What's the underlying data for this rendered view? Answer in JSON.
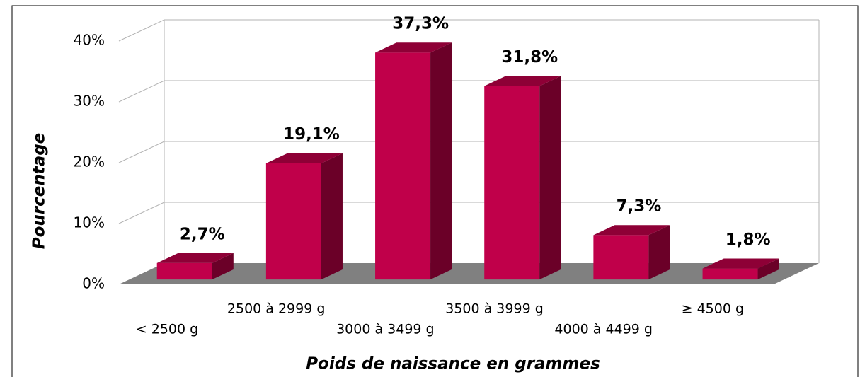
{
  "chart_data": {
    "type": "bar3d",
    "xlabel": "Poids de naissance en grammes",
    "ylabel": "Pourcentage",
    "categories": [
      "< 2500 g",
      "2500 à 2999 g",
      "3000 à 3499 g",
      "3500 à 3999 g",
      "4000 à 4499 g",
      "≥ 4500 g"
    ],
    "values": [
      2.7,
      19.1,
      37.3,
      31.8,
      7.3,
      1.8
    ],
    "value_labels": [
      "2,7%",
      "19,1%",
      "37,3%",
      "31,8%",
      "7,3%",
      "1,8%"
    ],
    "color": "#c0004a",
    "ylim": [
      0,
      40
    ],
    "yticks": [
      {
        "value": 0,
        "label": "0%"
      },
      {
        "value": 10,
        "label": "10%"
      },
      {
        "value": 20,
        "label": "20%"
      },
      {
        "value": 30,
        "label": "30%"
      },
      {
        "value": 40,
        "label": "40%"
      }
    ],
    "grid": true
  }
}
